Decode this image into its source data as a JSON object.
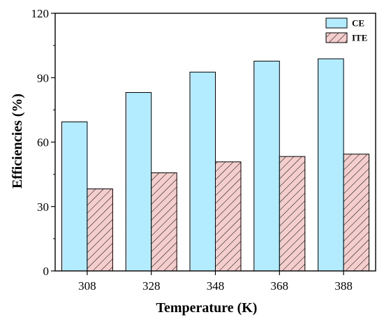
{
  "chart_data": {
    "type": "bar",
    "categories": [
      "308",
      "328",
      "348",
      "368",
      "388"
    ],
    "series": [
      {
        "name": "CE",
        "values": [
          69.4,
          83.1,
          92.6,
          97.7,
          98.8
        ],
        "color": "#b3ecff",
        "pattern": "solid"
      },
      {
        "name": "ITE",
        "values": [
          38.2,
          45.7,
          50.8,
          53.3,
          54.4
        ],
        "color": "#f4cdcd",
        "pattern": "diagonal-hatch"
      }
    ],
    "xlabel": "Temperature (K)",
    "ylabel": "Efficiencies (%)",
    "ylim": [
      0,
      120
    ],
    "yticks": [
      "0",
      "30",
      "60",
      "90",
      "120"
    ],
    "grid": false,
    "legend_position": "top-right"
  }
}
